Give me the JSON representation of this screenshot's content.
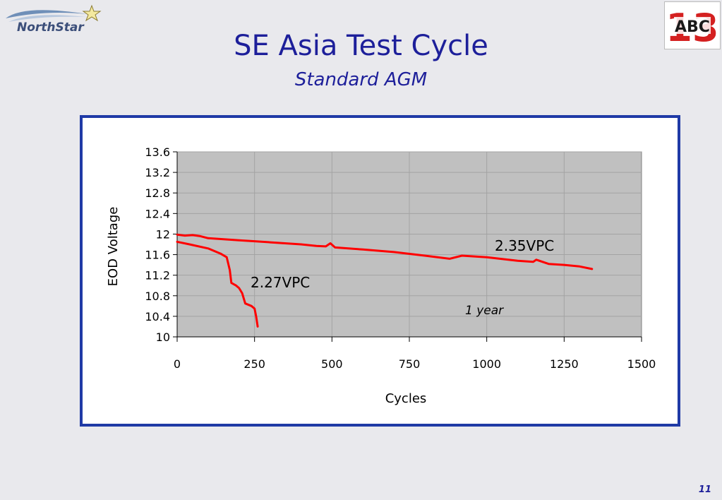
{
  "slide": {
    "title": "SE Asia Test Cycle",
    "subtitle": "Standard AGM",
    "page_number": "11",
    "logo_text": "NorthStar",
    "badge_text": "ABC",
    "badge_number": "13"
  },
  "colors": {
    "title": "#1d1f9a",
    "frame": "#1f3aa6",
    "plot_bg": "#c0c0c0",
    "series": "#ff0000",
    "badge": "#d42020"
  },
  "chart_data": {
    "type": "line",
    "title": "",
    "xlabel": "Cycles",
    "ylabel": "EOD Voltage",
    "xlim": [
      0,
      1500
    ],
    "ylim": [
      10,
      13.6
    ],
    "xticks": [
      0,
      250,
      500,
      750,
      1000,
      1250,
      1500
    ],
    "yticks": [
      "13.6",
      "13.2",
      "12.8",
      "12.4",
      "12",
      "11.6",
      "11.2",
      "10.8",
      "10.4",
      "10"
    ],
    "grid": true,
    "annotations": [
      "2.35VPC",
      "2.27VPC",
      "1 year"
    ],
    "series": [
      {
        "name": "2.35VPC",
        "color": "#ff0000",
        "x": [
          0,
          25,
          50,
          75,
          100,
          150,
          200,
          250,
          300,
          400,
          450,
          480,
          495,
          510,
          600,
          700,
          800,
          880,
          920,
          1000,
          1100,
          1150,
          1160,
          1200,
          1250,
          1300,
          1340
        ],
        "y": [
          11.99,
          11.97,
          11.98,
          11.96,
          11.92,
          11.9,
          11.88,
          11.86,
          11.84,
          11.8,
          11.77,
          11.76,
          11.82,
          11.74,
          11.7,
          11.65,
          11.58,
          11.52,
          11.58,
          11.55,
          11.48,
          11.46,
          11.5,
          11.42,
          11.4,
          11.37,
          11.32
        ]
      },
      {
        "name": "2.27VPC",
        "color": "#ff0000",
        "x": [
          0,
          40,
          100,
          140,
          160,
          170,
          175,
          190,
          200,
          210,
          215,
          220,
          240,
          250,
          255,
          260
        ],
        "y": [
          11.85,
          11.8,
          11.72,
          11.62,
          11.55,
          11.3,
          11.05,
          11.0,
          10.95,
          10.85,
          10.75,
          10.65,
          10.6,
          10.55,
          10.4,
          10.2
        ]
      }
    ]
  }
}
